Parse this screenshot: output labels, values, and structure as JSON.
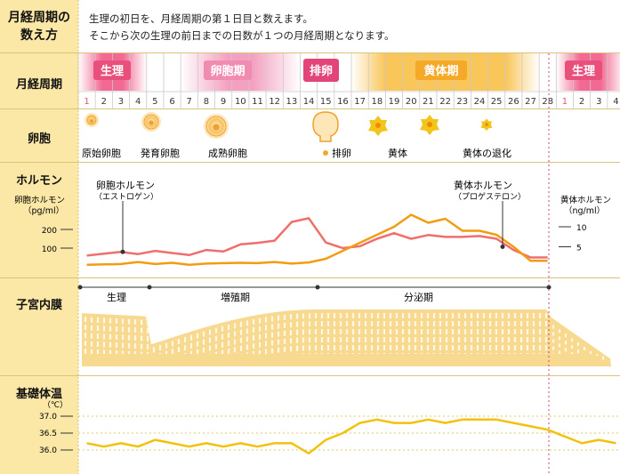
{
  "heading": {
    "line1": "月経周期の",
    "line2": "数え方"
  },
  "intro": {
    "line1": "生理の初日を、月経周期の第１日目と数えます。",
    "line2": "そこから次の生理の前日までの日数が１つの月経周期となります。"
  },
  "rows": {
    "cycle": "月経周期",
    "follicle": "卵胞",
    "hormone": "ホルモン",
    "endometrium": "子宮内膜",
    "bbt": "基礎体温"
  },
  "phases": {
    "menstruation": "生理",
    "follicular": "卵胞期",
    "ovulation": "排卵",
    "luteal": "黄体期",
    "menstruation_next": "生理"
  },
  "days": [
    "1",
    "2",
    "3",
    "4",
    "5",
    "6",
    "7",
    "8",
    "9",
    "10",
    "11",
    "12",
    "13",
    "14",
    "15",
    "16",
    "17",
    "18",
    "19",
    "20",
    "21",
    "22",
    "23",
    "24",
    "25",
    "26",
    "27",
    "28",
    "1",
    "2",
    "3",
    "4"
  ],
  "follicle_labels": {
    "primordial": "原始卵胞",
    "developing": "発育卵胞",
    "mature": "成熟卵胞",
    "ovulation": "排卵",
    "corpus_luteum": "黄体",
    "regression": "黄体の退化"
  },
  "hormone": {
    "left_axis_title_1": "卵胞ホルモン",
    "left_axis_title_2": "（pg/ml）",
    "left_ticks": [
      "200",
      "100"
    ],
    "right_axis_title_1": "黄体ホルモン",
    "right_axis_title_2": "（ng/ml）",
    "right_ticks": [
      "10",
      "5"
    ],
    "estrogen_label_1": "卵胞ホルモン",
    "estrogen_label_2": "（エストロゲン）",
    "progesterone_label_1": "黄体ホルモン",
    "progesterone_label_2": "（プロゲステロン）"
  },
  "endometrium_phases": {
    "menstrual": "生理",
    "proliferative": "増殖期",
    "secretory": "分泌期"
  },
  "bbt": {
    "unit": "（℃）",
    "ticks": [
      "37.0",
      "36.5",
      "36.0"
    ]
  },
  "colors": {
    "label_bg": "#fbe7a6",
    "menstruation": "#e84f7b",
    "follicular": "#f08cb0",
    "ovulation": "#e2457a",
    "luteal": "#f5a928",
    "estrogen_line": "#ef6f6c",
    "progesterone_line": "#f39c12",
    "bbt_line": "#f3c10b",
    "follicle": "#f0a030",
    "corpus_luteum": "#f3c51c",
    "endometrium": "#f7d98f"
  },
  "chart_data": {
    "type": "line",
    "x": [
      1,
      2,
      3,
      4,
      5,
      6,
      7,
      8,
      9,
      10,
      11,
      12,
      13,
      14,
      15,
      16,
      17,
      18,
      19,
      20,
      21,
      22,
      23,
      24,
      25,
      26,
      27,
      28,
      29,
      30,
      31,
      32
    ],
    "series": [
      {
        "name": "卵胞ホルモン（エストロゲン）",
        "unit": "pg/ml",
        "values": [
          60,
          70,
          80,
          68,
          85,
          74,
          63,
          90,
          82,
          120,
          128,
          140,
          240,
          260,
          130,
          100,
          110,
          150,
          180,
          150,
          170,
          160,
          160,
          165,
          150,
          90,
          50,
          50,
          null,
          null,
          null,
          null
        ]
      },
      {
        "name": "黄体ホルモン（プロゲステロン）",
        "unit": "ng/ml",
        "values": [
          0.5,
          0.6,
          0.7,
          1.2,
          0.7,
          1,
          0.5,
          0.8,
          0.9,
          1,
          0.9,
          1.2,
          0.8,
          1.1,
          2,
          4,
          6,
          8,
          10,
          13,
          11,
          12,
          9,
          9,
          8,
          5,
          1.5,
          1.5,
          null,
          null,
          null,
          null
        ]
      },
      {
        "name": "基礎体温",
        "unit": "℃",
        "values": [
          36.2,
          36.1,
          36.2,
          36.1,
          36.3,
          36.2,
          36.1,
          36.2,
          36.1,
          36.2,
          36.1,
          36.2,
          36.2,
          35.9,
          36.3,
          36.5,
          36.8,
          36.9,
          36.8,
          36.8,
          36.9,
          36.8,
          36.9,
          36.9,
          36.9,
          36.8,
          36.7,
          36.6,
          36.4,
          36.2,
          36.3,
          36.2
        ]
      }
    ]
  }
}
